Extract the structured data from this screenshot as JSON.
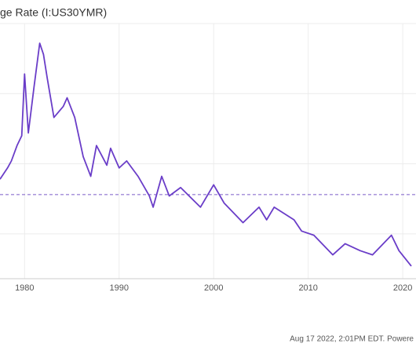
{
  "chart_data": {
    "type": "line",
    "title": "ge Rate (I:US30YMR)",
    "footer": "Aug 17 2022, 2:01PM EDT. Powere",
    "x": [
      1977.4,
      1978.2,
      1978.6,
      1979.2,
      1979.7,
      1980.0,
      1980.4,
      1981.0,
      1981.6,
      1982.0,
      1982.4,
      1983.1,
      1984.1,
      1984.5,
      1985.3,
      1986.2,
      1987.0,
      1987.6,
      1988.7,
      1989.1,
      1990.0,
      1990.8,
      1992.0,
      1993.2,
      1993.6,
      1994.5,
      1995.3,
      1996.5,
      1998.6,
      2000.0,
      2001.1,
      2003.1,
      2004.8,
      2005.6,
      2006.4,
      2008.5,
      2009.3,
      2010.6,
      2012.6,
      2013.9,
      2015.5,
      2016.8,
      2018.8,
      2019.6,
      2020.9
    ],
    "series": [
      {
        "color": "#6a3dc8",
        "values": [
          8.9,
          9.7,
          10.2,
          11.3,
          12.0,
          16.4,
          12.2,
          15.5,
          18.6,
          17.8,
          16.1,
          13.3,
          14.1,
          14.7,
          13.3,
          10.5,
          9.1,
          11.3,
          9.9,
          11.1,
          9.7,
          10.2,
          9.1,
          7.7,
          6.9,
          9.1,
          7.7,
          8.3,
          6.9,
          8.5,
          7.2,
          5.8,
          6.9,
          6.0,
          6.9,
          6.0,
          5.2,
          4.9,
          3.5,
          4.3,
          3.8,
          3.5,
          4.9,
          3.8,
          2.7
        ]
      }
    ],
    "reference_value": 7.8,
    "xlim": [
      1977.4,
      2021.4
    ],
    "xticks": [
      1980,
      1990,
      2000,
      2010,
      2020
    ],
    "ylim": [
      1.8,
      20
    ],
    "yticks": [
      5,
      10,
      15,
      20
    ],
    "grid": true
  }
}
